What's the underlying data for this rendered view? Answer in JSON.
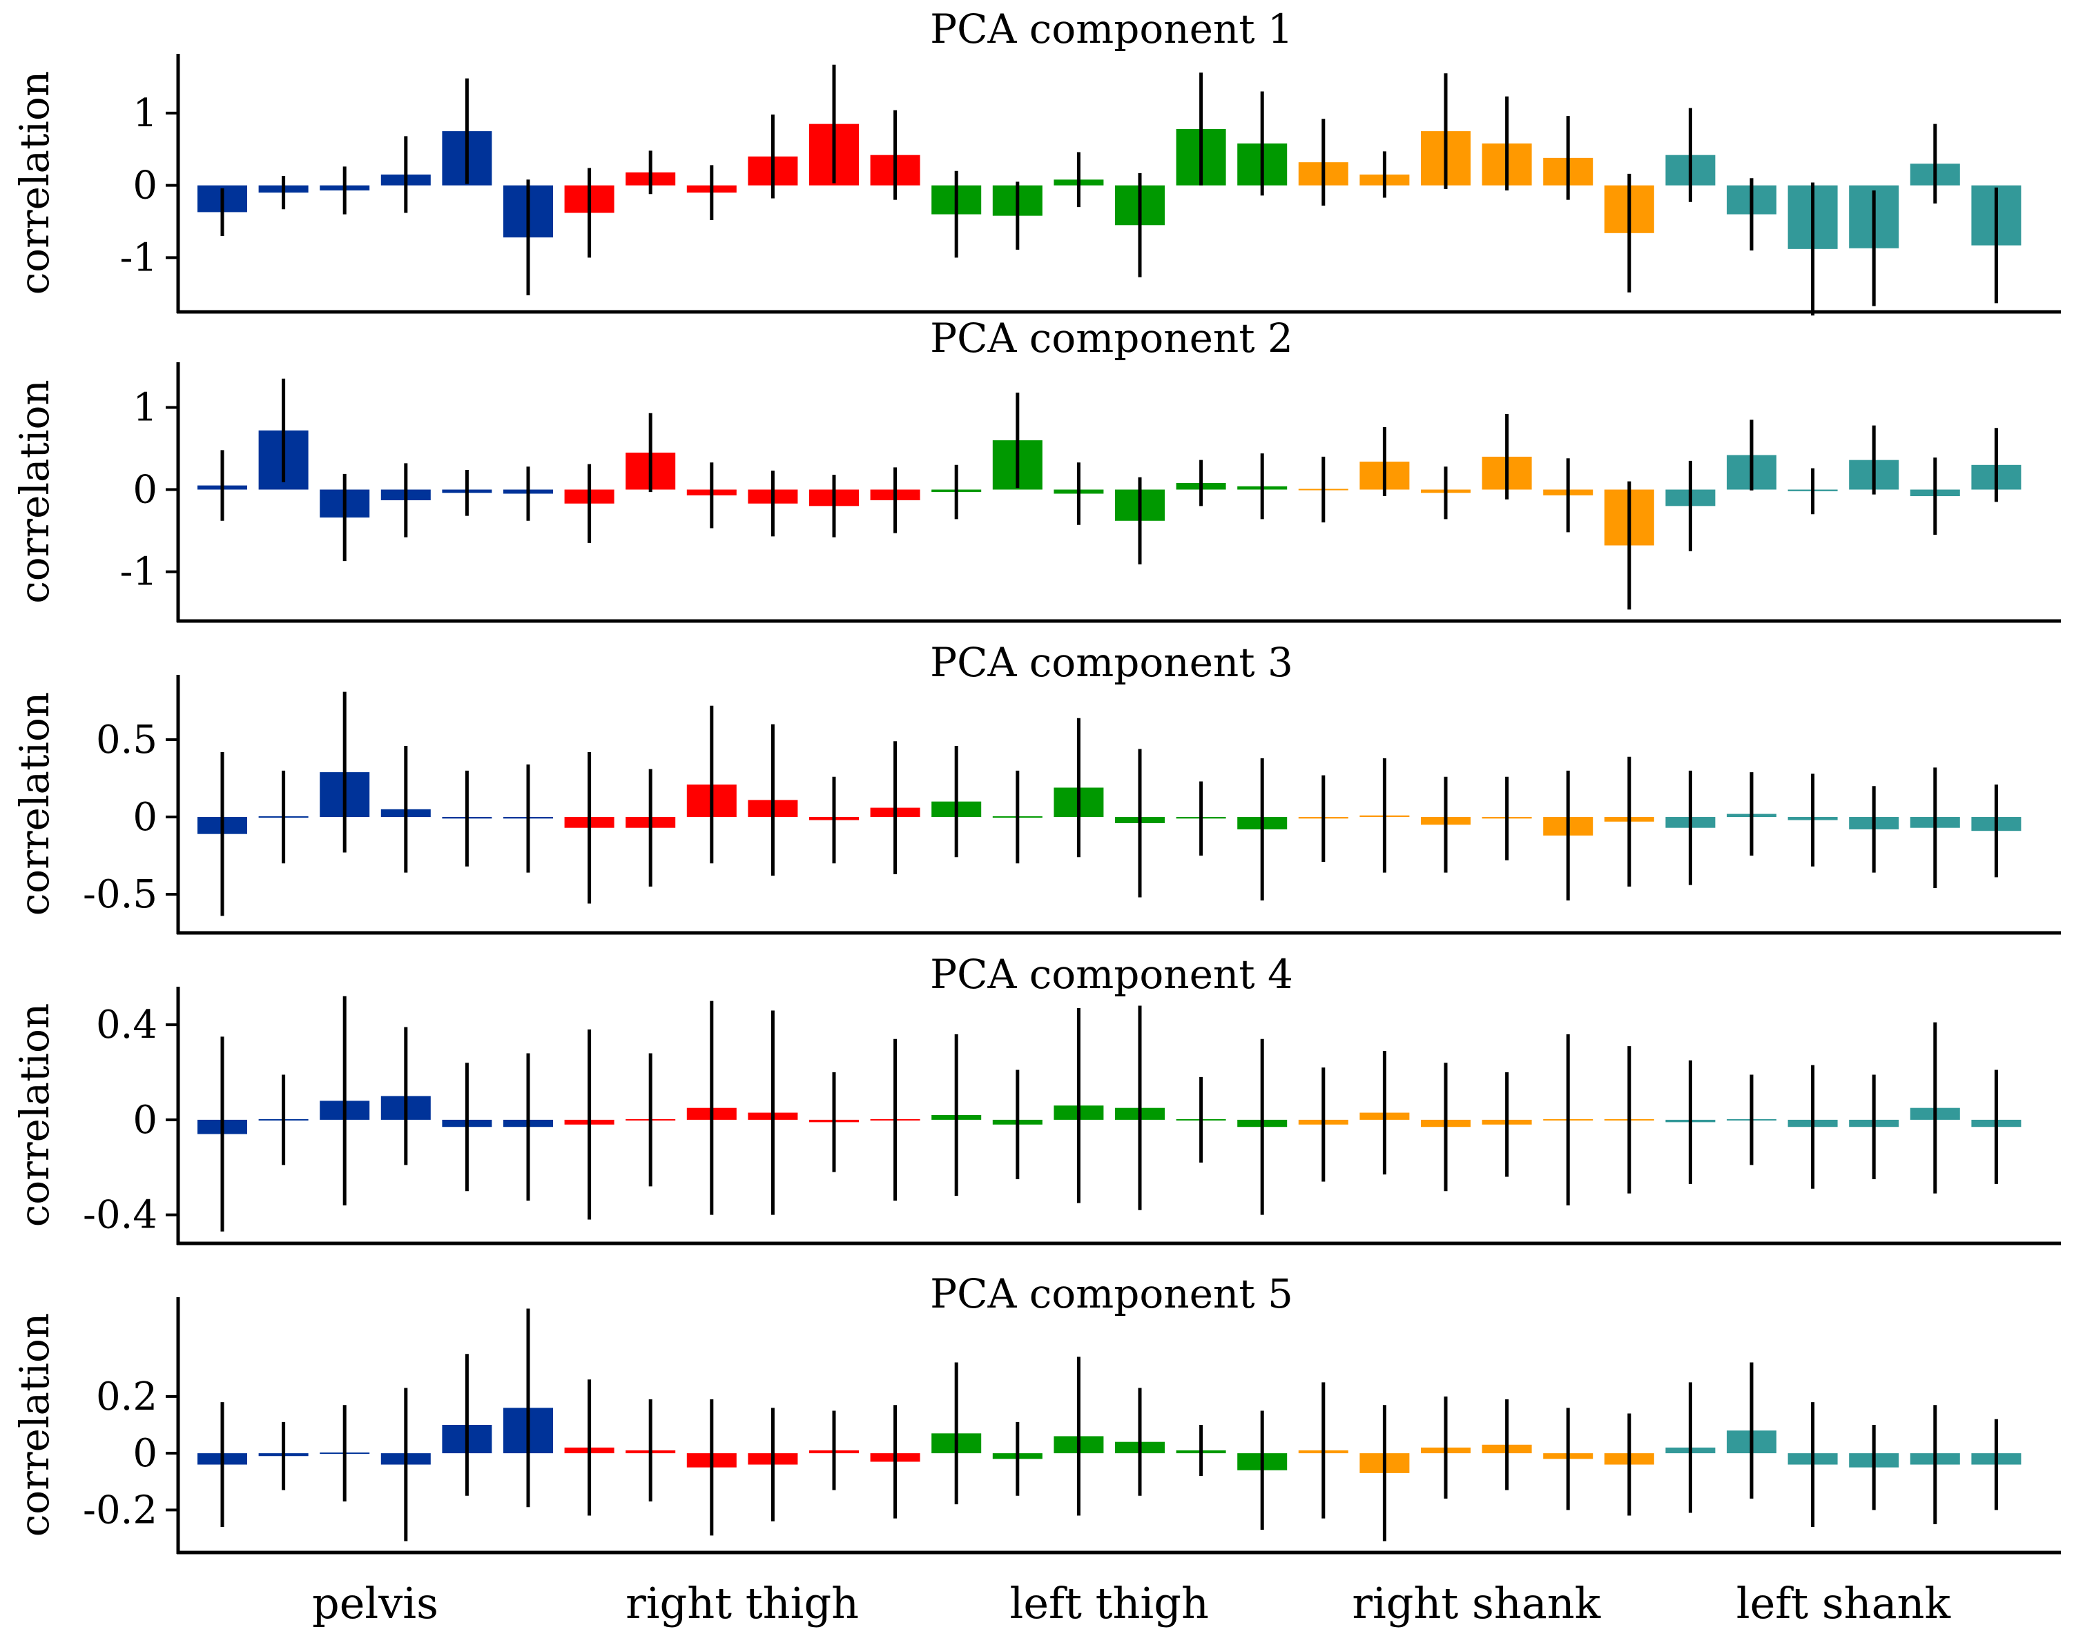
{
  "chart_data": {
    "type": "bar",
    "figure": "PCA component correlations with error bars",
    "groups": [
      {
        "name": "pelvis",
        "color": "#003399"
      },
      {
        "name": "right thigh",
        "color": "#ff0000"
      },
      {
        "name": "left thigh",
        "color": "#009900"
      },
      {
        "name": "right shank",
        "color": "#ff9900"
      },
      {
        "name": "left shank",
        "color": "#339999"
      }
    ],
    "bars_per_group": 6,
    "panels": [
      {
        "title": "PCA component 1",
        "ylabel": "correlation",
        "ylim": [
          -1.75,
          1.82
        ],
        "ticks": [
          1,
          0,
          -1
        ],
        "tick_labels": [
          "1",
          "0",
          "-1"
        ],
        "values": [
          -0.37,
          -0.1,
          -0.07,
          0.15,
          0.75,
          -0.72,
          -0.38,
          0.18,
          -0.1,
          0.4,
          0.85,
          0.42,
          -0.4,
          -0.42,
          0.08,
          -0.55,
          0.78,
          0.58,
          0.32,
          0.15,
          0.75,
          0.58,
          0.38,
          -0.66,
          0.42,
          -0.4,
          -0.88,
          -0.87,
          0.3,
          -0.83
        ],
        "errors": [
          0.33,
          0.23,
          0.33,
          0.53,
          0.73,
          0.8,
          0.62,
          0.3,
          0.38,
          0.58,
          0.82,
          0.62,
          0.6,
          0.47,
          0.38,
          0.72,
          0.78,
          0.72,
          0.6,
          0.32,
          0.8,
          0.65,
          0.58,
          0.82,
          0.65,
          0.5,
          0.92,
          0.8,
          0.55,
          0.8
        ]
      },
      {
        "title": "PCA component 2",
        "ylabel": "correlation",
        "ylim": [
          -1.6,
          1.55
        ],
        "ticks": [
          1,
          0,
          -1
        ],
        "tick_labels": [
          "1",
          "0",
          "-1"
        ],
        "values": [
          0.05,
          0.72,
          -0.34,
          -0.13,
          -0.04,
          -0.05,
          -0.17,
          0.45,
          -0.07,
          -0.17,
          -0.2,
          -0.13,
          -0.03,
          0.6,
          -0.05,
          -0.38,
          0.08,
          0.04,
          0.0,
          0.34,
          -0.04,
          0.4,
          -0.07,
          -0.68,
          -0.2,
          0.42,
          -0.02,
          0.36,
          -0.08,
          0.3
        ],
        "errors": [
          0.43,
          0.63,
          0.53,
          0.45,
          0.28,
          0.33,
          0.48,
          0.48,
          0.4,
          0.4,
          0.38,
          0.4,
          0.33,
          0.58,
          0.38,
          0.53,
          0.28,
          0.4,
          0.4,
          0.42,
          0.32,
          0.52,
          0.45,
          0.78,
          0.55,
          0.43,
          0.28,
          0.42,
          0.47,
          0.45
        ]
      },
      {
        "title": "PCA component 3",
        "ylabel": "correlation",
        "ylim": [
          -0.75,
          0.92
        ],
        "ticks": [
          0.5,
          0,
          -0.5
        ],
        "tick_labels": [
          "0.5",
          "0",
          "-0.5"
        ],
        "values": [
          -0.11,
          0.0,
          0.29,
          0.05,
          -0.01,
          -0.01,
          -0.07,
          -0.07,
          0.21,
          0.11,
          -0.02,
          0.06,
          0.1,
          0.0,
          0.19,
          -0.04,
          -0.01,
          -0.08,
          -0.01,
          0.01,
          -0.05,
          -0.01,
          -0.12,
          -0.03,
          -0.07,
          0.02,
          -0.02,
          -0.08,
          -0.07,
          -0.09
        ],
        "errors": [
          0.53,
          0.3,
          0.52,
          0.41,
          0.31,
          0.35,
          0.49,
          0.38,
          0.51,
          0.49,
          0.28,
          0.43,
          0.36,
          0.3,
          0.45,
          0.48,
          0.24,
          0.46,
          0.28,
          0.37,
          0.31,
          0.27,
          0.42,
          0.42,
          0.37,
          0.27,
          0.3,
          0.28,
          0.39,
          0.3
        ]
      },
      {
        "title": "PCA component 4",
        "ylabel": "correlation",
        "ylim": [
          -0.52,
          0.56
        ],
        "ticks": [
          0.4,
          0,
          -0.4
        ],
        "tick_labels": [
          "0.4",
          "0",
          "-0.4"
        ],
        "values": [
          -0.06,
          0.0,
          0.08,
          0.1,
          -0.03,
          -0.03,
          -0.02,
          0.0,
          0.05,
          0.03,
          -0.01,
          0.0,
          0.02,
          -0.02,
          0.06,
          0.05,
          0.0,
          -0.03,
          -0.02,
          0.03,
          -0.03,
          -0.02,
          0.0,
          0.0,
          -0.01,
          0.0,
          -0.03,
          -0.03,
          0.05,
          -0.03
        ],
        "errors": [
          0.41,
          0.19,
          0.44,
          0.29,
          0.27,
          0.31,
          0.4,
          0.28,
          0.45,
          0.43,
          0.21,
          0.34,
          0.34,
          0.23,
          0.41,
          0.43,
          0.18,
          0.37,
          0.24,
          0.26,
          0.27,
          0.22,
          0.36,
          0.31,
          0.26,
          0.19,
          0.26,
          0.22,
          0.36,
          0.24
        ]
      },
      {
        "title": "PCA component 5",
        "ylabel": "correlation",
        "ylim": [
          -0.35,
          0.55
        ],
        "ticks": [
          0.2,
          0,
          -0.2
        ],
        "tick_labels": [
          "0.2",
          "0",
          "-0.2"
        ],
        "values": [
          -0.04,
          -0.01,
          0.0,
          -0.04,
          0.1,
          0.16,
          0.02,
          0.01,
          -0.05,
          -0.04,
          0.01,
          -0.03,
          0.07,
          -0.02,
          0.06,
          0.04,
          0.01,
          -0.06,
          0.01,
          -0.07,
          0.02,
          0.03,
          -0.02,
          -0.04,
          0.02,
          0.08,
          -0.04,
          -0.05,
          -0.04,
          -0.04
        ],
        "errors": [
          0.22,
          0.12,
          0.17,
          0.27,
          0.25,
          0.35,
          0.24,
          0.18,
          0.24,
          0.2,
          0.14,
          0.2,
          0.25,
          0.13,
          0.28,
          0.19,
          0.09,
          0.21,
          0.24,
          0.24,
          0.18,
          0.16,
          0.18,
          0.18,
          0.23,
          0.24,
          0.22,
          0.15,
          0.21,
          0.16
        ]
      }
    ]
  }
}
